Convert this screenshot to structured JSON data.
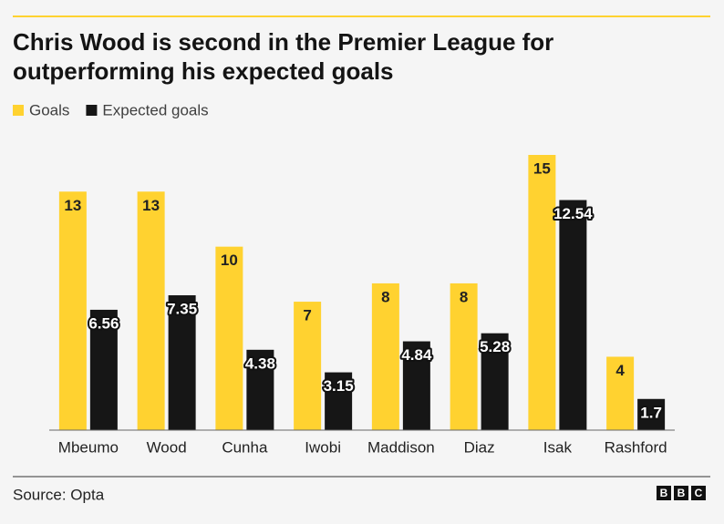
{
  "chart_data": {
    "type": "bar",
    "title": [
      "Chris Wood is second in the Premier League for",
      "outperforming his expected goals"
    ],
    "categories": [
      "Mbeumo",
      "Wood",
      "Cunha",
      "Iwobi",
      "Maddison",
      "Diaz",
      "Isak",
      "Rashford"
    ],
    "series": [
      {
        "name": "Goals",
        "color": "#ffd230",
        "values": [
          13,
          13,
          10,
          7,
          8,
          8,
          15,
          4
        ]
      },
      {
        "name": "Expected goals",
        "color": "#161616",
        "values": [
          6.56,
          7.35,
          4.38,
          3.15,
          4.84,
          5.28,
          12.54,
          1.7
        ]
      }
    ],
    "ylim": [
      0,
      15
    ],
    "source": "Source: Opta",
    "logo": [
      "B",
      "B",
      "C"
    ]
  }
}
